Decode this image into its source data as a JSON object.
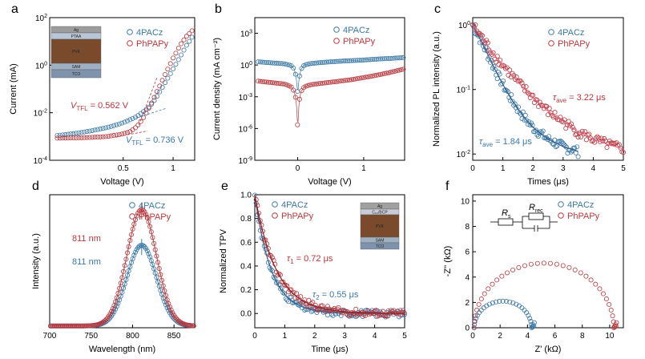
{
  "colors": {
    "blue": "#3a78a6",
    "red": "#b8383d"
  },
  "chart_data": [
    {
      "id": "a",
      "panel_label": "a",
      "type": "scatter",
      "xscale": "log",
      "yscale": "log",
      "xlim": [
        0.18,
        1.35
      ],
      "ylim": [
        0.0001,
        100
      ],
      "xlabel": "Voltage (V)",
      "ylabel": "Current (mA)",
      "xticks": [
        {
          "v": 0.5,
          "label": "0.5"
        },
        {
          "v": 1,
          "label": "1"
        }
      ],
      "yticks": [
        {
          "v": 0.0001,
          "base": "10",
          "exp": "-4"
        },
        {
          "v": 0.01,
          "base": "10",
          "exp": "-2"
        },
        {
          "v": 1,
          "base": "10",
          "exp": "0"
        },
        {
          "v": 100,
          "base": "10",
          "exp": "2"
        }
      ],
      "legend": [
        "4PACz",
        "PhPAPy"
      ],
      "series": [
        {
          "name": "4PACz",
          "color": "blue",
          "x": [
            0.2,
            0.3,
            0.4,
            0.5,
            0.6,
            0.7,
            0.75,
            0.8,
            0.85,
            0.9,
            1.0,
            1.1,
            1.2,
            1.3
          ],
          "y": [
            0.0011,
            0.0016,
            0.0024,
            0.0038,
            0.0068,
            0.015,
            0.025,
            0.05,
            0.1,
            0.2,
            0.7,
            2.2,
            6.5,
            15
          ]
        },
        {
          "name": "PhPAPy",
          "color": "red",
          "x": [
            0.2,
            0.3,
            0.4,
            0.5,
            0.55,
            0.6,
            0.65,
            0.7,
            0.75,
            0.8,
            0.9,
            1.0,
            1.1,
            1.2,
            1.3
          ],
          "y": [
            0.00085,
            0.0009,
            0.001,
            0.0013,
            0.0016,
            0.0025,
            0.005,
            0.012,
            0.03,
            0.08,
            0.45,
            2.0,
            6.8,
            16,
            28
          ]
        }
      ],
      "annotations": [
        {
          "color": "red",
          "sym": "V",
          "sub": "TFL",
          "rest": " = 0.562 V"
        },
        {
          "color": "blue",
          "sym": "V",
          "sub": "TFL",
          "rest": " = 0.736 V"
        }
      ],
      "inset_stack": [
        "Ag",
        "PTAA",
        "PVK",
        "SAM",
        "TCO"
      ]
    },
    {
      "id": "b",
      "panel_label": "b",
      "type": "scatter",
      "yscale": "log",
      "xlim": [
        -0.65,
        1.62
      ],
      "ylim": [
        1e-09,
        30000
      ],
      "xlabel": "Voltage (V)",
      "ylabel": "Current density (mA cm⁻²)",
      "xticks": [
        {
          "v": 0,
          "label": "0"
        },
        {
          "v": 1,
          "label": "1"
        }
      ],
      "yticks": [
        {
          "v": 1e-09,
          "base": "10",
          "exp": "-9"
        },
        {
          "v": 1e-06,
          "base": "10",
          "exp": "-6"
        },
        {
          "v": 0.001,
          "base": "10",
          "exp": "-3"
        },
        {
          "v": 1,
          "base": "10",
          "exp": "0"
        },
        {
          "v": 1000,
          "base": "10",
          "exp": "3"
        }
      ],
      "legend": [
        "4PACz",
        "PhPAPy"
      ],
      "series": [
        {
          "name": "4PACz",
          "color": "blue",
          "x": [
            -0.6,
            -0.4,
            -0.2,
            -0.1,
            -0.05,
            -0.02,
            0.0,
            0.02,
            0.05,
            0.1,
            0.2,
            0.4,
            0.6,
            0.8,
            1.0,
            1.2,
            1.4,
            1.6
          ],
          "y": [
            2,
            1.6,
            1.3,
            0.9,
            0.4,
            0.05,
            0.002,
            0.05,
            0.4,
            1.0,
            1.4,
            1.8,
            2.2,
            2.6,
            3.0,
            3.6,
            4.2,
            5.0
          ]
        },
        {
          "name": "PhPAPy",
          "color": "red",
          "x": [
            -0.6,
            -0.4,
            -0.2,
            -0.1,
            -0.05,
            -0.02,
            0.0,
            0.02,
            0.05,
            0.1,
            0.2,
            0.4,
            0.6,
            0.8,
            1.0,
            1.2,
            1.4,
            1.6
          ],
          "y": [
            0.03,
            0.022,
            0.016,
            0.009,
            0.003,
            0.0003,
            1e-06,
            0.0003,
            0.003,
            0.009,
            0.014,
            0.02,
            0.028,
            0.04,
            0.065,
            0.11,
            0.2,
            0.4
          ]
        }
      ]
    },
    {
      "id": "c",
      "panel_label": "c",
      "type": "scatter",
      "yscale": "log",
      "xlim": [
        0,
        5
      ],
      "ylim": [
        0.008,
        1.3
      ],
      "xlabel": "Times (μs)",
      "ylabel": "Normalized PL intensity (a.u.)",
      "xticks": [
        {
          "v": 0,
          "label": "0"
        },
        {
          "v": 1,
          "label": "1"
        },
        {
          "v": 2,
          "label": "2"
        },
        {
          "v": 3,
          "label": "3"
        },
        {
          "v": 4,
          "label": "4"
        },
        {
          "v": 5,
          "label": "5"
        }
      ],
      "yticks": [
        {
          "v": 0.01,
          "base": "10",
          "exp": "-2"
        },
        {
          "v": 0.1,
          "base": "10",
          "exp": "-1"
        },
        {
          "v": 1,
          "base": "10",
          "exp": "0"
        }
      ],
      "legend": [
        "4PACz",
        "PhPAPy"
      ],
      "series": [
        {
          "name": "4PACz",
          "color": "blue",
          "x": [
            0,
            0.25,
            0.5,
            0.75,
            1.0,
            1.25,
            1.5,
            1.75,
            2.0,
            2.25,
            2.5,
            2.75,
            3.0,
            3.25,
            3.5
          ],
          "y": [
            1.0,
            0.6,
            0.35,
            0.2,
            0.12,
            0.075,
            0.05,
            0.035,
            0.026,
            0.021,
            0.017,
            0.015,
            0.013,
            0.012,
            0.011
          ]
        },
        {
          "name": "PhPAPy",
          "color": "red",
          "x": [
            0,
            0.25,
            0.5,
            0.75,
            1.0,
            1.5,
            2.0,
            2.5,
            3.0,
            3.5,
            4.0,
            4.5,
            5.0
          ],
          "y": [
            1.0,
            0.7,
            0.48,
            0.33,
            0.24,
            0.13,
            0.075,
            0.046,
            0.032,
            0.022,
            0.017,
            0.014,
            0.012
          ]
        }
      ],
      "annotations": [
        {
          "color": "red",
          "sym": "τ",
          "sub": "ave",
          "rest": " = 3.22 μs"
        },
        {
          "color": "blue",
          "sym": "τ",
          "sub": "ave",
          "rest": " = 1.84 μs"
        }
      ]
    },
    {
      "id": "d",
      "panel_label": "d",
      "type": "scatter",
      "xlim": [
        700,
        875
      ],
      "ylim": [
        0,
        1.12
      ],
      "xlabel": "Wavelength (nm)",
      "ylabel": "Intensity (a.u.)",
      "xticks": [
        {
          "v": 700,
          "label": "700"
        },
        {
          "v": 750,
          "label": "750"
        },
        {
          "v": 800,
          "label": "800"
        },
        {
          "v": 850,
          "label": "850"
        }
      ],
      "legend": [
        "4PACz",
        "PhPAPy"
      ],
      "series": [
        {
          "name": "4PACz",
          "color": "blue",
          "peak_x": 811,
          "peak_y": 0.68,
          "fwhm": 42
        },
        {
          "name": "PhPAPy",
          "color": "red",
          "peak_x": 811,
          "peak_y": 0.98,
          "fwhm": 42
        }
      ],
      "annotations": [
        {
          "color": "red",
          "text": "811 nm"
        },
        {
          "color": "blue",
          "text": "811 nm"
        }
      ]
    },
    {
      "id": "e",
      "panel_label": "e",
      "type": "scatter",
      "xlim": [
        0,
        5
      ],
      "ylim": [
        -0.12,
        1.0
      ],
      "xlabel": "Time (μs)",
      "ylabel": "Normalized TPV",
      "xticks": [
        {
          "v": 0,
          "label": "0"
        },
        {
          "v": 1,
          "label": "1"
        },
        {
          "v": 2,
          "label": "2"
        },
        {
          "v": 3,
          "label": "3"
        },
        {
          "v": 4,
          "label": "4"
        },
        {
          "v": 5,
          "label": "5"
        }
      ],
      "yticks": [
        {
          "v": 0,
          "label": "0.0"
        },
        {
          "v": 0.2,
          "label": "0.2"
        },
        {
          "v": 0.4,
          "label": "0.4"
        },
        {
          "v": 0.6,
          "label": "0.6"
        },
        {
          "v": 0.8,
          "label": "0.8"
        },
        {
          "v": 1.0,
          "label": "1.0"
        }
      ],
      "legend": [
        "4PACz",
        "PhPAPy"
      ],
      "series": [
        {
          "name": "4PACz",
          "color": "blue",
          "tau": 0.55
        },
        {
          "name": "PhPAPy",
          "color": "red",
          "tau": 0.72
        }
      ],
      "annotations": [
        {
          "color": "red",
          "sym": "τ",
          "sub": "1",
          "rest": " = 0.72 μs"
        },
        {
          "color": "blue",
          "sym": "τ",
          "sub": "2",
          "rest": " = 0.55 μs"
        }
      ],
      "inset_stack": [
        "Ag",
        "C₆₀/BCP",
        "PVK",
        "SAM",
        "TCO"
      ]
    },
    {
      "id": "f",
      "panel_label": "f",
      "type": "scatter",
      "xlim": [
        0,
        11
      ],
      "ylim": [
        0,
        10.5
      ],
      "xlabel": "Z' (kΩ)",
      "ylabel": "-Z'' (kΩ)",
      "xticks": [
        {
          "v": 0,
          "label": "0"
        },
        {
          "v": 2,
          "label": "2"
        },
        {
          "v": 4,
          "label": "4"
        },
        {
          "v": 6,
          "label": "6"
        },
        {
          "v": 8,
          "label": "8"
        },
        {
          "v": 10,
          "label": "10"
        }
      ],
      "yticks": [
        {
          "v": 0,
          "label": "0"
        },
        {
          "v": 2,
          "label": "2"
        },
        {
          "v": 4,
          "label": "4"
        },
        {
          "v": 6,
          "label": "6"
        },
        {
          "v": 8,
          "label": "8"
        },
        {
          "v": 10,
          "label": "10"
        }
      ],
      "legend": [
        "4PACz",
        "PhPAPy"
      ],
      "series": [
        {
          "name": "4PACz",
          "color": "blue",
          "r_s": 0.1,
          "r_rec": 4.2
        },
        {
          "name": "PhPAPy",
          "color": "red",
          "r_s": 0.1,
          "r_rec": 10.2
        }
      ],
      "circuit_labels": [
        {
          "sym": "R",
          "sub": "s"
        },
        {
          "sym": "R",
          "sub": "rec"
        }
      ]
    }
  ]
}
